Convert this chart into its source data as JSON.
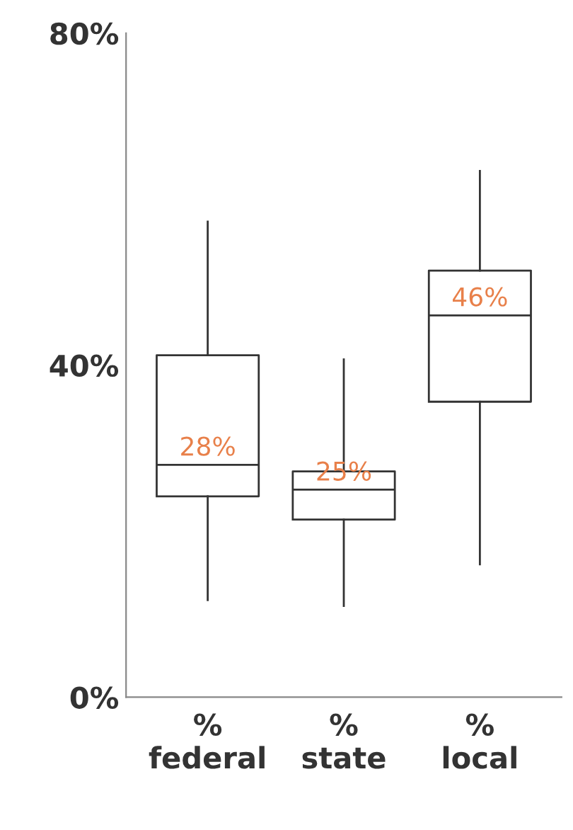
{
  "chart_data": {
    "type": "box",
    "categories": [
      "%\nfederal",
      "%\nstate",
      "%\nlocal"
    ],
    "boxes": [
      {
        "low": 11.7,
        "q1": 24.2,
        "median": 28,
        "q3": 41.2,
        "high": 57.3
      },
      {
        "low": 11,
        "q1": 21.4,
        "median": 25,
        "q3": 27.2,
        "high": 40.7
      },
      {
        "low": 16,
        "q1": 35.6,
        "median": 46,
        "q3": 51.4,
        "high": 63.4
      }
    ],
    "value_labels": [
      "28%",
      "25%",
      "46%"
    ],
    "color": "#333333",
    "ylim": [
      0,
      80
    ],
    "yticks": [
      {
        "value": 0,
        "label": "0%"
      },
      {
        "value": 40,
        "label": "40%"
      },
      {
        "value": 80,
        "label": "80%"
      }
    ],
    "grid": false
  }
}
